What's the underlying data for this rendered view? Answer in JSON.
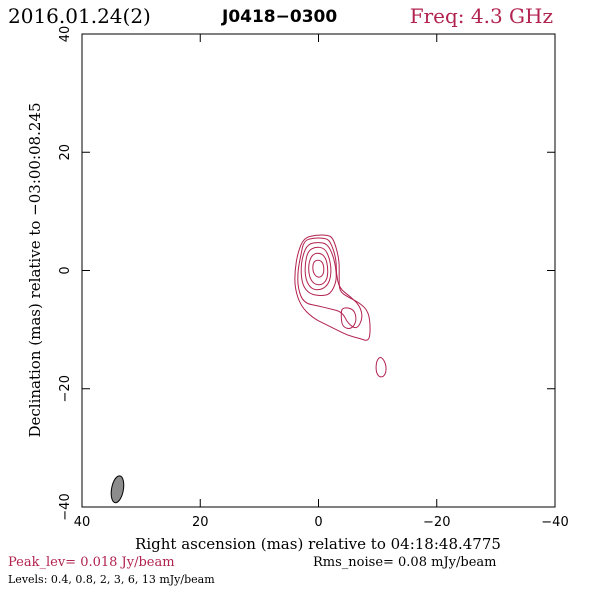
{
  "header": {
    "date": "2016.01.24(2)",
    "source": "J0418−0300",
    "freq": "Freq: 4.3 GHz"
  },
  "footer": {
    "peak": "Peak_lev=  0.018 Jy/beam",
    "rms": "Rms_noise= 0.08 mJy/beam",
    "levels": "Levels: 0.4, 0.8,   2,   3,   6,  13 mJy/beam"
  },
  "colors": {
    "contour": "#b2224f",
    "frame": "#000000",
    "beam_fill": "#8c8c8c"
  },
  "chart_data": {
    "type": "contour",
    "title": "J0418−0300",
    "xlabel": "Right ascension (mas) relative to 04:18:48.4775",
    "ylabel": "Declination (mas) relative to −03:00:08.245",
    "xlim": [
      40,
      -40
    ],
    "ylim": [
      -40,
      40
    ],
    "x_ticks": [
      {
        "v": 40,
        "label": "40"
      },
      {
        "v": 20,
        "label": "20"
      },
      {
        "v": 0,
        "label": "0"
      },
      {
        "v": -20,
        "label": "−20"
      },
      {
        "v": -40,
        "label": "−40"
      }
    ],
    "y_ticks": [
      {
        "v": -40,
        "label": "−40"
      },
      {
        "v": -20,
        "label": "−20"
      },
      {
        "v": 0,
        "label": "0"
      },
      {
        "v": 20,
        "label": "20"
      },
      {
        "v": 40,
        "label": "40"
      }
    ],
    "levels_mJy": [
      0.4,
      0.8,
      2,
      3,
      6,
      13
    ],
    "peak_Jy_per_beam": 0.018,
    "rms_mJy_per_beam": 0.08,
    "contours": [
      {
        "level": 0.4,
        "points": [
          [
            -2.5,
            5.5
          ],
          [
            -1.5,
            6
          ],
          [
            0.5,
            6
          ],
          [
            2.5,
            5.5
          ],
          [
            3.5,
            3
          ],
          [
            4,
            0
          ],
          [
            4,
            -3
          ],
          [
            3,
            -6
          ],
          [
            1,
            -8
          ],
          [
            -1,
            -9
          ],
          [
            -3,
            -10
          ],
          [
            -5,
            -11
          ],
          [
            -7,
            -11.5
          ],
          [
            -8.5,
            -12
          ],
          [
            -8.8,
            -10
          ],
          [
            -8.5,
            -7
          ],
          [
            -7,
            -5.5
          ],
          [
            -5,
            -4.5
          ],
          [
            -3.5,
            -3.5
          ],
          [
            -3.5,
            -1
          ],
          [
            -3.5,
            2
          ]
        ]
      },
      {
        "level": 0.4,
        "points": [
          [
            -10.5,
            -14.5
          ],
          [
            -11.3,
            -15.5
          ],
          [
            -11.5,
            -17
          ],
          [
            -11,
            -18
          ],
          [
            -10.2,
            -18
          ],
          [
            -9.7,
            -17
          ],
          [
            -9.8,
            -15.3
          ]
        ]
      },
      {
        "level": 0.8,
        "points": [
          [
            -2,
            5
          ],
          [
            -1,
            5.5
          ],
          [
            1,
            5.5
          ],
          [
            2.5,
            5
          ],
          [
            3,
            2.5
          ],
          [
            3.5,
            0
          ],
          [
            3.5,
            -3
          ],
          [
            2.5,
            -5.5
          ],
          [
            0,
            -6
          ],
          [
            -2,
            -6.5
          ],
          [
            -4,
            -7
          ],
          [
            -5,
            -9
          ],
          [
            -6.5,
            -10
          ],
          [
            -7.5,
            -8
          ],
          [
            -7,
            -6
          ],
          [
            -5.5,
            -4.5
          ],
          [
            -3.5,
            -3
          ],
          [
            -3,
            -0.5
          ],
          [
            -3,
            2
          ]
        ]
      },
      {
        "level": 0.8,
        "points": [
          [
            -4,
            -6.2
          ],
          [
            -6,
            -6.5
          ],
          [
            -6.5,
            -8.5
          ],
          [
            -5.5,
            -10
          ],
          [
            -4,
            -9.5
          ],
          [
            -3.8,
            -7.5
          ]
        ]
      },
      {
        "level": 2,
        "points": [
          [
            -1.5,
            4.5
          ],
          [
            0,
            4.8
          ],
          [
            1.8,
            4.5
          ],
          [
            2.7,
            2.5
          ],
          [
            3,
            0
          ],
          [
            2.7,
            -2.5
          ],
          [
            1.5,
            -4
          ],
          [
            -0.5,
            -4.3
          ],
          [
            -2,
            -4
          ],
          [
            -3,
            -2
          ],
          [
            -3,
            0
          ],
          [
            -2.5,
            2.5
          ]
        ]
      },
      {
        "level": 3,
        "points": [
          [
            -1,
            3.8
          ],
          [
            0.5,
            4
          ],
          [
            1.8,
            3.3
          ],
          [
            2.3,
            1
          ],
          [
            2.2,
            -1.5
          ],
          [
            1.2,
            -3.2
          ],
          [
            -0.5,
            -3.3
          ],
          [
            -1.8,
            -2.2
          ],
          [
            -2.2,
            0
          ],
          [
            -1.8,
            2.3
          ]
        ]
      },
      {
        "level": 6,
        "points": [
          [
            -0.3,
            3
          ],
          [
            1,
            2.8
          ],
          [
            1.7,
            1.2
          ],
          [
            1.6,
            -1
          ],
          [
            0.8,
            -2.3
          ],
          [
            -0.5,
            -2.5
          ],
          [
            -1.5,
            -1.5
          ],
          [
            -1.6,
            0.5
          ],
          [
            -1.2,
            2.2
          ]
        ]
      },
      {
        "level": 13,
        "points": [
          [
            0.2,
            1.8
          ],
          [
            0.9,
            1.4
          ],
          [
            1,
            0
          ],
          [
            0.5,
            -1
          ],
          [
            -0.3,
            -1.2
          ],
          [
            -0.9,
            -0.5
          ],
          [
            -0.9,
            0.8
          ],
          [
            -0.5,
            1.6
          ]
        ]
      }
    ],
    "beam": {
      "x": 34,
      "y": -37,
      "major_mas": 4.6,
      "minor_mas": 2.0,
      "pa_deg": 10
    }
  }
}
